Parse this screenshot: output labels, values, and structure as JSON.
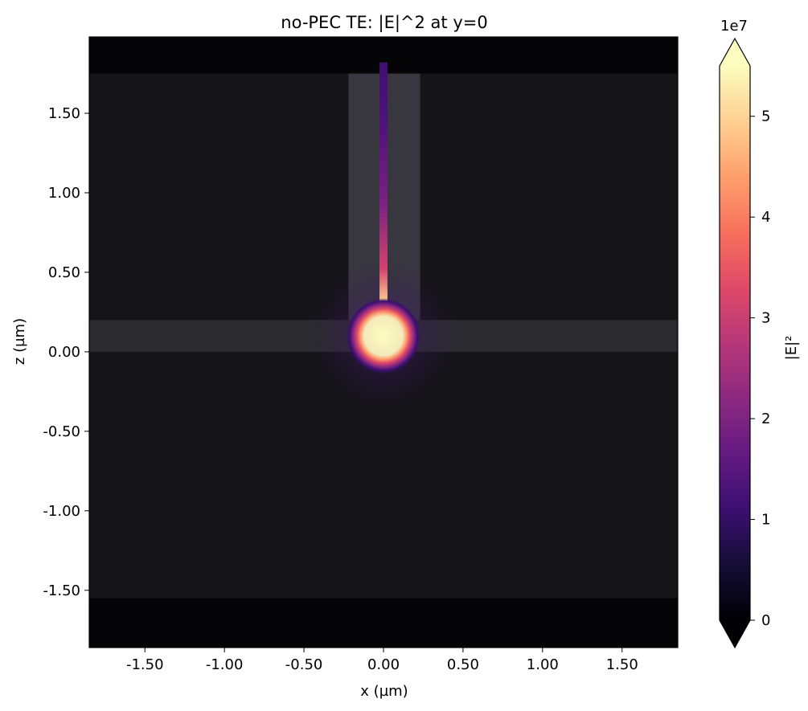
{
  "chart_data": {
    "type": "heatmap",
    "title": "no-PEC TE: |E|^2 at y=0",
    "xlabel": "x (µm)",
    "ylabel": "z (µm)",
    "xlim": [
      -1.85,
      1.85
    ],
    "ylim": [
      -1.86,
      1.98
    ],
    "x_ticks": [
      -1.5,
      -1.0,
      -0.5,
      0.0,
      0.5,
      1.0,
      1.5
    ],
    "x_tick_labels": [
      "-1.50",
      "-1.00",
      "-0.50",
      "0.00",
      "0.50",
      "1.00",
      "1.50"
    ],
    "y_ticks": [
      1.5,
      1.0,
      0.5,
      0.0,
      -0.5,
      -1.0,
      -1.5
    ],
    "y_tick_labels": [
      "1.50",
      "1.00",
      "0.50",
      "0.00",
      "-0.50",
      "-1.00",
      "-1.50"
    ],
    "colorbar": {
      "label": "|E|²",
      "colormap": "magma",
      "min": 0,
      "max": 55000000,
      "extend": "both",
      "multiplier_label": "1e7",
      "ticks": [
        0,
        10000000,
        20000000,
        30000000,
        40000000,
        50000000
      ],
      "tick_labels": [
        "0",
        "1",
        "2",
        "3",
        "4",
        "5"
      ]
    },
    "structures": [
      {
        "name": "simulation region",
        "x": [
          -1.85,
          1.85
        ],
        "z": [
          -1.55,
          1.75
        ]
      },
      {
        "name": "horizontal slab",
        "x": [
          -1.85,
          1.85
        ],
        "z": [
          0.0,
          0.2
        ]
      },
      {
        "name": "vertical block",
        "x": [
          -0.22,
          0.23
        ],
        "z": [
          0.2,
          1.75
        ]
      }
    ],
    "field_features": [
      {
        "name": "hotspot",
        "x": 0.0,
        "z": 0.1,
        "radius": 0.15,
        "value": 55000000
      },
      {
        "name": "vertical line",
        "x": 0.0,
        "z": [
          0.2,
          1.82
        ],
        "width": 0.05
      }
    ]
  }
}
